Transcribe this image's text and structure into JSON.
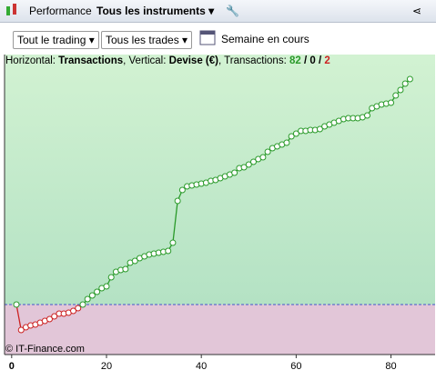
{
  "toolbar": {
    "tab": "Performance",
    "instrument": "Tous les instruments"
  },
  "filters": {
    "trading": "Tout le trading",
    "trades": "Tous les trades",
    "period": "Semaine en cours"
  },
  "info": {
    "h_label": "Horizontal:",
    "h_value": "Transactions",
    "v_label": ", Vertical:",
    "v_value": "Devise (€)",
    "t_label": ", Transactions:",
    "wins": 82,
    "sep1": "/",
    "even": 0,
    "sep2": "/",
    "losses": 2
  },
  "watermark": "© IT-Finance.com",
  "chart_data": {
    "type": "line",
    "x": [
      1,
      2,
      3,
      4,
      5,
      6,
      7,
      8,
      9,
      10,
      11,
      12,
      13,
      14,
      15,
      16,
      17,
      18,
      19,
      20,
      21,
      22,
      23,
      24,
      25,
      26,
      27,
      28,
      29,
      30,
      31,
      32,
      33,
      34,
      35,
      36,
      37,
      38,
      39,
      40,
      41,
      42,
      43,
      44,
      45,
      46,
      47,
      48,
      49,
      50,
      51,
      52,
      53,
      54,
      55,
      56,
      57,
      58,
      59,
      60,
      61,
      62,
      63,
      64,
      65,
      66,
      67,
      68,
      69,
      70,
      71,
      72,
      73,
      74,
      75,
      76,
      77,
      78,
      79,
      80,
      81,
      82,
      83,
      84
    ],
    "series": [
      {
        "color": "#2a9a2a",
        "values": [
          0,
          -28,
          -25,
          -23,
          -22,
          -20,
          -18,
          -16,
          -13,
          -10,
          -10,
          -9,
          -7,
          -4,
          0,
          6,
          10,
          14,
          18,
          20,
          30,
          36,
          38,
          39,
          46,
          48,
          51,
          53,
          55,
          56,
          57,
          58,
          59,
          68,
          114,
          126,
          130,
          131,
          132,
          133,
          134,
          136,
          137,
          139,
          141,
          143,
          145,
          150,
          151,
          154,
          157,
          160,
          162,
          168,
          172,
          174,
          176,
          178,
          185,
          188,
          191,
          191,
          192,
          192,
          193,
          196,
          198,
          200,
          202,
          204,
          205,
          205,
          205,
          206,
          208,
          216,
          218,
          220,
          221,
          222,
          230,
          236,
          243,
          248
        ]
      }
    ],
    "negative_color": "#cc2222",
    "zero_line_color": "#4455cc",
    "xlim": [
      -1.5,
      89.3
    ],
    "ylim": [
      -55,
      275
    ],
    "xticks": [
      0,
      20,
      40,
      60,
      80
    ]
  }
}
